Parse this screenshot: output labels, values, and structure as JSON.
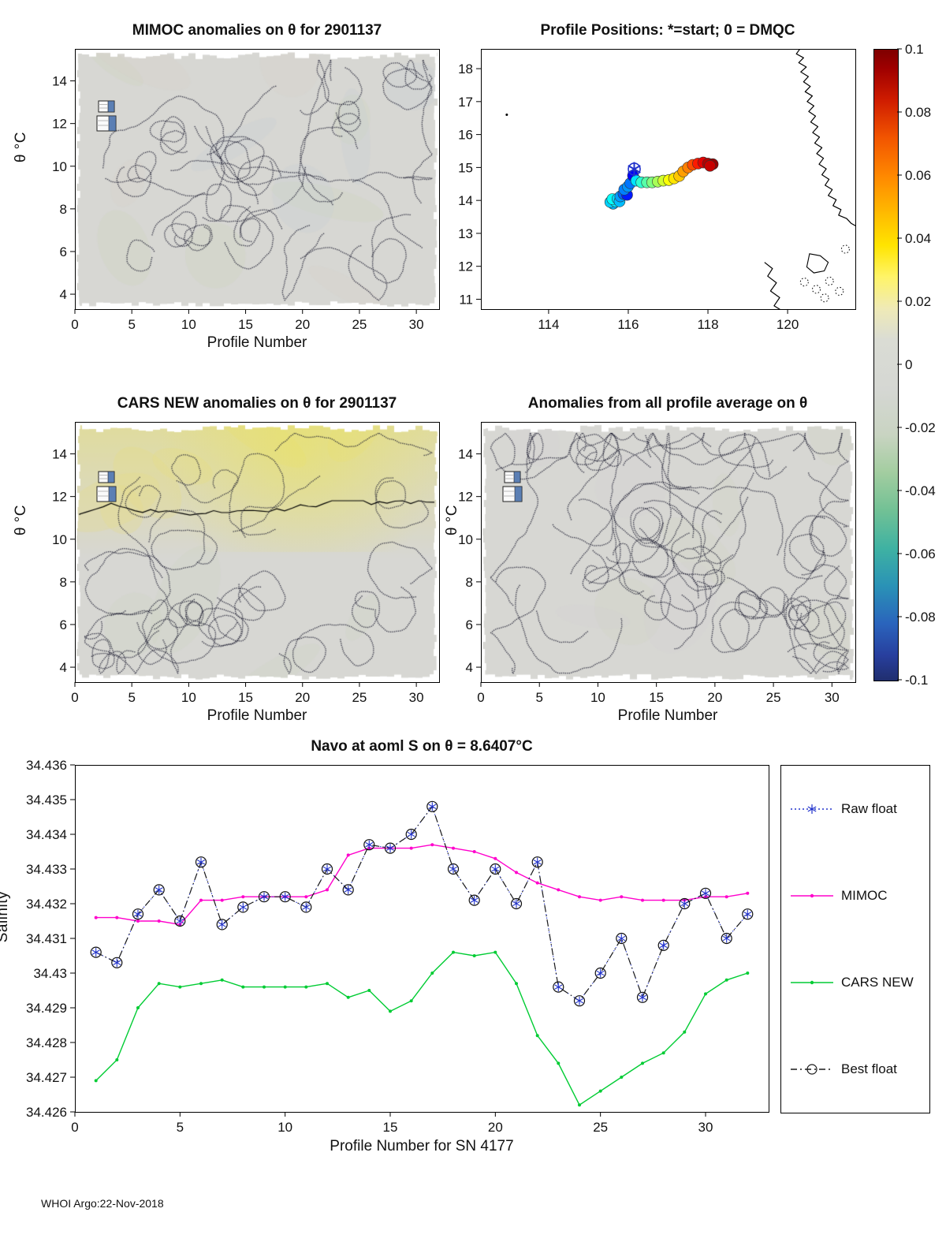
{
  "figure": {
    "footer": "WHOI Argo:22-Nov-2018"
  },
  "colorbar": {
    "range": [
      -0.1,
      0.1
    ],
    "tick_labels": [
      "0.1",
      "0.08",
      "0.06",
      "0.04",
      "0.02",
      "0",
      "-0.02",
      "-0.04",
      "-0.06",
      "-0.08",
      "-0.1"
    ],
    "gradient_stops": [
      "#7f0000 0%",
      "#9f0000 3%",
      "#cf1c00 8%",
      "#f25500 14%",
      "#ff8800 20%",
      "#ffbb00 26%",
      "#ffe400 31%",
      "#fff468 36%",
      "#efeab6 41%",
      "#dadcd4 46%",
      "#d5d7d3 54%",
      "#c9d4c2 61%",
      "#a3cda0 67%",
      "#72c195 73%",
      "#3fb2a2 79%",
      "#2a92b6 85%",
      "#2a64bc 91%",
      "#283f9e 96%",
      "#202e6e 100%"
    ]
  },
  "panels": {
    "mimoc": {
      "title": "MIMOC anomalies on θ  for 2901137",
      "xlabel": "Profile Number",
      "ylabel": "θ °C",
      "xticks": [
        "0",
        "5",
        "10",
        "15",
        "20",
        "25",
        "30"
      ],
      "yticks": [
        "4",
        "6",
        "8",
        "10",
        "12",
        "14"
      ]
    },
    "positions": {
      "title": "Profile Positions: *=start; 0 = DMQC",
      "xticks": [
        "114",
        "116",
        "118",
        "120"
      ],
      "yticks": [
        "11",
        "12",
        "13",
        "14",
        "15",
        "16",
        "17",
        "18"
      ]
    },
    "cars": {
      "title": "CARS NEW anomalies on θ for 2901137",
      "xlabel": "Profile Number",
      "ylabel": "θ °C",
      "xticks": [
        "0",
        "5",
        "10",
        "15",
        "20",
        "25",
        "30"
      ],
      "yticks": [
        "4",
        "6",
        "8",
        "10",
        "12",
        "14"
      ]
    },
    "allprof": {
      "title": "Anomalies from all profile average on θ",
      "xlabel": "Profile Number",
      "ylabel": "θ °C",
      "xticks": [
        "0",
        "5",
        "10",
        "15",
        "20",
        "25",
        "30"
      ],
      "yticks": [
        "4",
        "6",
        "8",
        "10",
        "12",
        "14"
      ]
    },
    "salinity": {
      "title": "Navo at aoml S on θ = 8.6407°C",
      "xlabel": "Profile Number for SN 4177",
      "ylabel": "Salinity",
      "xticks": [
        "0",
        "5",
        "10",
        "15",
        "20",
        "25",
        "30"
      ],
      "yticks": [
        "34.426",
        "34.427",
        "34.428",
        "34.429",
        "34.43",
        "34.431",
        "34.432",
        "34.433",
        "34.434",
        "34.435",
        "34.436"
      ],
      "legend": [
        {
          "label": "Raw float",
          "color": "#2233cc",
          "line": "dotted",
          "marker": "asterisk"
        },
        {
          "label": "MIMOC",
          "color": "#ff00cc",
          "line": "solid",
          "marker": "dot"
        },
        {
          "label": "CARS NEW",
          "color": "#00cc33",
          "line": "solid",
          "marker": "dot"
        },
        {
          "label": "Best float",
          "color": "#1a1a1a",
          "line": "dashdot",
          "marker": "circle"
        }
      ]
    }
  },
  "chart_data": [
    {
      "id": "mimoc-anomaly-contour",
      "type": "heatmap",
      "title": "MIMOC anomalies on θ  for 2901137",
      "xlabel": "Profile Number",
      "ylabel": "θ °C",
      "xlim": [
        0,
        32
      ],
      "ylim": [
        3.3,
        15.5
      ],
      "value_range_shown": [
        -0.1,
        0.1
      ],
      "summary": "Anomaly field approximately 0 everywhere (uniform light gray) with scattered dotted zero-level contour lines"
    },
    {
      "id": "profile-positions",
      "type": "scatter",
      "title": "Profile Positions: *=start; 0 = DMQC",
      "xlim": [
        112.3,
        121.7
      ],
      "ylim": [
        10.7,
        18.6
      ],
      "start": [
        116.15,
        14.95
      ],
      "points": [
        [
          115.62,
          13.9,
          0.3
        ],
        [
          115.55,
          13.95,
          0.33
        ],
        [
          115.68,
          13.97,
          0.36
        ],
        [
          115.6,
          14.04,
          0.38
        ],
        [
          115.73,
          14.05,
          0.34
        ],
        [
          115.78,
          13.97,
          0.31
        ],
        [
          115.8,
          14.12,
          0.28
        ],
        [
          115.88,
          14.2,
          0.22
        ],
        [
          115.97,
          14.17,
          0.15
        ],
        [
          115.9,
          14.33,
          0.25
        ],
        [
          115.99,
          14.42,
          0.27
        ],
        [
          116.05,
          14.52,
          0.24
        ],
        [
          116.12,
          14.75,
          0.12
        ],
        [
          116.2,
          14.6,
          0.35
        ],
        [
          116.33,
          14.55,
          0.42
        ],
        [
          116.47,
          14.55,
          0.46
        ],
        [
          116.6,
          14.55,
          0.5
        ],
        [
          116.74,
          14.57,
          0.54
        ],
        [
          116.88,
          14.6,
          0.58
        ],
        [
          117.02,
          14.62,
          0.62
        ],
        [
          117.15,
          14.67,
          0.65
        ],
        [
          117.28,
          14.74,
          0.68
        ],
        [
          117.38,
          14.88,
          0.72
        ],
        [
          117.5,
          15.0,
          0.75
        ],
        [
          117.62,
          15.08,
          0.8
        ],
        [
          117.75,
          15.12,
          0.85
        ],
        [
          117.88,
          15.15,
          0.9
        ],
        [
          118.0,
          15.12,
          0.95
        ],
        [
          118.12,
          15.1,
          0.98
        ],
        [
          118.05,
          15.05,
          0.93
        ]
      ],
      "coastline": [
        [
          [
            120.32,
            18.62
          ],
          [
            120.22,
            18.45
          ],
          [
            120.4,
            18.33
          ],
          [
            120.28,
            18.18
          ],
          [
            120.47,
            18.05
          ],
          [
            120.33,
            17.9
          ],
          [
            120.52,
            17.76
          ],
          [
            120.4,
            17.6
          ],
          [
            120.57,
            17.46
          ],
          [
            120.44,
            17.3
          ],
          [
            120.62,
            17.17
          ],
          [
            120.49,
            17.0
          ],
          [
            120.66,
            16.87
          ],
          [
            120.53,
            16.7
          ],
          [
            120.7,
            16.56
          ],
          [
            120.58,
            16.38
          ],
          [
            120.76,
            16.24
          ],
          [
            120.63,
            16.06
          ],
          [
            120.8,
            15.92
          ],
          [
            120.68,
            15.74
          ],
          [
            120.86,
            15.6
          ],
          [
            120.73,
            15.42
          ],
          [
            120.9,
            15.28
          ],
          [
            120.79,
            15.1
          ],
          [
            120.97,
            14.96
          ],
          [
            120.86,
            14.78
          ],
          [
            121.04,
            14.64
          ],
          [
            120.94,
            14.46
          ],
          [
            121.12,
            14.33
          ],
          [
            121.02,
            14.15
          ],
          [
            121.22,
            14.02
          ],
          [
            121.14,
            13.84
          ],
          [
            121.34,
            13.72
          ],
          [
            121.28,
            13.55
          ],
          [
            121.48,
            13.45
          ],
          [
            121.6,
            13.3
          ],
          [
            121.72,
            13.22
          ]
        ],
        [
          [
            119.42,
            12.12
          ],
          [
            119.62,
            11.93
          ],
          [
            119.5,
            11.7
          ],
          [
            119.72,
            11.5
          ],
          [
            119.57,
            11.25
          ],
          [
            119.8,
            11.05
          ],
          [
            119.66,
            10.8
          ],
          [
            119.85,
            10.66
          ]
        ]
      ],
      "island_outlines": [
        [
          [
            120.55,
            12.38
          ],
          [
            120.82,
            12.32
          ],
          [
            121.02,
            12.12
          ],
          [
            120.92,
            11.86
          ],
          [
            120.66,
            11.8
          ],
          [
            120.48,
            11.98
          ]
        ]
      ],
      "islets": [
        [
          120.42,
          11.52
        ],
        [
          120.72,
          11.3
        ],
        [
          121.05,
          11.55
        ],
        [
          121.3,
          11.24
        ],
        [
          120.93,
          11.04
        ],
        [
          121.45,
          12.52
        ]
      ],
      "speck": [
        112.95,
        16.6
      ],
      "color_scale": "profile order mapped blue (early) to dark red (late), range -0.1 to 0.1 colorbar"
    },
    {
      "id": "cars-anomaly-contour",
      "type": "heatmap",
      "title": "CARS NEW anomalies on θ for 2901137",
      "xlabel": "Profile Number",
      "ylabel": "θ °C",
      "xlim": [
        0,
        32
      ],
      "ylim": [
        3.3,
        15.5
      ],
      "value_range_shown": [
        -0.1,
        0.1
      ],
      "summary": "Slight positive anomaly (pale yellow, up to about +0.02) above θ≈11 with a solid black zero contour crossing near θ≈11; near-zero gray with dotted contours below"
    },
    {
      "id": "allprofile-anomaly-contour",
      "type": "heatmap",
      "title": "Anomalies from all profile average on θ",
      "xlabel": "Profile Number",
      "ylabel": "θ °C",
      "xlim": [
        0,
        32
      ],
      "ylim": [
        3.3,
        15.5
      ],
      "value_range_shown": [
        -0.1,
        0.1
      ],
      "summary": "Anomalies approximately 0 (uniform light gray) with dense dotted zero-level contour lines"
    },
    {
      "id": "salinity-comparison",
      "type": "line",
      "title": "Navo at aoml S on θ = 8.6407°C",
      "xlabel": "Profile Number for SN 4177",
      "ylabel": "Salinity",
      "xlim": [
        0,
        33
      ],
      "ylim": [
        34.426,
        34.436
      ],
      "legend_position": "right outside",
      "x": [
        1,
        2,
        3,
        4,
        5,
        6,
        7,
        8,
        9,
        10,
        11,
        12,
        13,
        14,
        15,
        16,
        17,
        18,
        19,
        20,
        21,
        22,
        23,
        24,
        25,
        26,
        27,
        28,
        29,
        30,
        31,
        32
      ],
      "series": [
        {
          "name": "Raw float",
          "color": "#2233cc",
          "line": "dotted",
          "marker": "asterisk",
          "values": [
            34.4306,
            34.4303,
            34.4317,
            34.4324,
            34.4315,
            34.4332,
            34.4314,
            34.4319,
            34.4322,
            34.4322,
            34.4319,
            34.433,
            34.4324,
            34.4337,
            34.4336,
            34.434,
            34.4348,
            34.433,
            34.4321,
            34.433,
            34.432,
            34.4332,
            34.4296,
            34.4292,
            34.43,
            34.431,
            34.4293,
            34.4308,
            34.432,
            34.4323,
            34.431,
            34.4317
          ]
        },
        {
          "name": "MIMOC",
          "color": "#ff00cc",
          "line": "solid",
          "marker": "dot",
          "values": [
            34.4316,
            34.4316,
            34.4315,
            34.4315,
            34.4314,
            34.4321,
            34.4321,
            34.4322,
            34.4322,
            34.4322,
            34.4322,
            34.4324,
            34.4334,
            34.4336,
            34.4336,
            34.4336,
            34.4337,
            34.4336,
            34.4335,
            34.4333,
            34.4329,
            34.4326,
            34.4324,
            34.4322,
            34.4321,
            34.4322,
            34.4321,
            34.4321,
            34.4321,
            34.4322,
            34.4322,
            34.4323
          ]
        },
        {
          "name": "CARS NEW",
          "color": "#00cc33",
          "line": "solid",
          "marker": "dot",
          "values": [
            34.4269,
            34.4275,
            34.429,
            34.4297,
            34.4296,
            34.4297,
            34.4298,
            34.4296,
            34.4296,
            34.4296,
            34.4296,
            34.4297,
            34.4293,
            34.4295,
            34.4289,
            34.4292,
            34.43,
            34.4306,
            34.4305,
            34.4306,
            34.4297,
            34.4282,
            34.4274,
            34.4262,
            34.4266,
            34.427,
            34.4274,
            34.4277,
            34.4283,
            34.4294,
            34.4298,
            34.43
          ]
        },
        {
          "name": "Best float",
          "color": "#1a1a1a",
          "line": "dashdot",
          "marker": "circle",
          "values": [
            34.4306,
            34.4303,
            34.4317,
            34.4324,
            34.4315,
            34.4332,
            34.4314,
            34.4319,
            34.4322,
            34.4322,
            34.4319,
            34.433,
            34.4324,
            34.4337,
            34.4336,
            34.434,
            34.4348,
            34.433,
            34.4321,
            34.433,
            34.432,
            34.4332,
            34.4296,
            34.4292,
            34.43,
            34.431,
            34.4293,
            34.4308,
            34.432,
            34.4323,
            34.431,
            34.4317
          ]
        }
      ]
    }
  ]
}
